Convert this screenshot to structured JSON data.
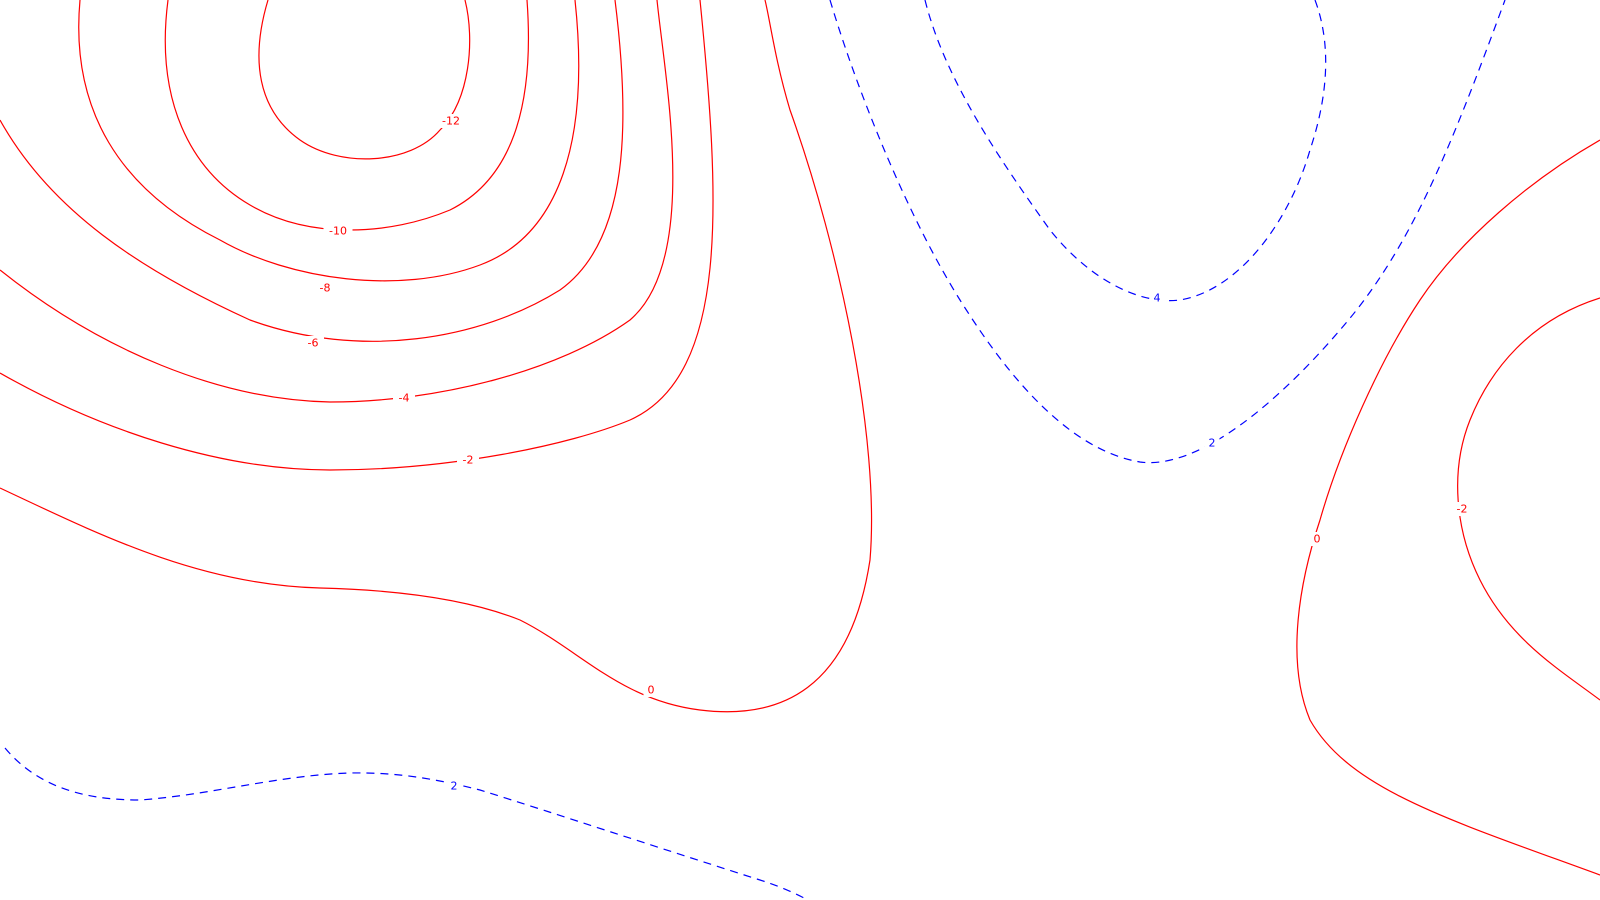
{
  "chart_data": {
    "type": "contour",
    "title": "",
    "xlabel": "",
    "ylabel": "",
    "grid": false,
    "legend": "none",
    "colors": {
      "negative": "#ff0000",
      "positive": "#0000ff",
      "background": "#ffffff"
    },
    "line_styles": {
      "negative": "solid",
      "positive": "dashed"
    },
    "levels": [
      -12,
      -10,
      -8,
      -6,
      -4,
      -2,
      0,
      2,
      4
    ],
    "contours": [
      {
        "level": -12,
        "label": "-12",
        "sign": "negative"
      },
      {
        "level": -10,
        "label": "-10",
        "sign": "negative"
      },
      {
        "level": -8,
        "label": "-8",
        "sign": "negative"
      },
      {
        "level": -6,
        "label": "-6",
        "sign": "negative"
      },
      {
        "level": -4,
        "label": "-4",
        "sign": "negative"
      },
      {
        "level": -2,
        "label": "-2",
        "sign": "negative"
      },
      {
        "level": 0,
        "label": "0",
        "sign": "zero"
      },
      {
        "level": 4,
        "label": "4",
        "sign": "positive"
      },
      {
        "level": 2,
        "label": "2",
        "sign": "positive"
      },
      {
        "level": 0,
        "label": "0",
        "sign": "zero"
      },
      {
        "level": -2,
        "label": "-2",
        "sign": "negative"
      },
      {
        "level": 2,
        "label": "2",
        "sign": "positive"
      }
    ]
  }
}
